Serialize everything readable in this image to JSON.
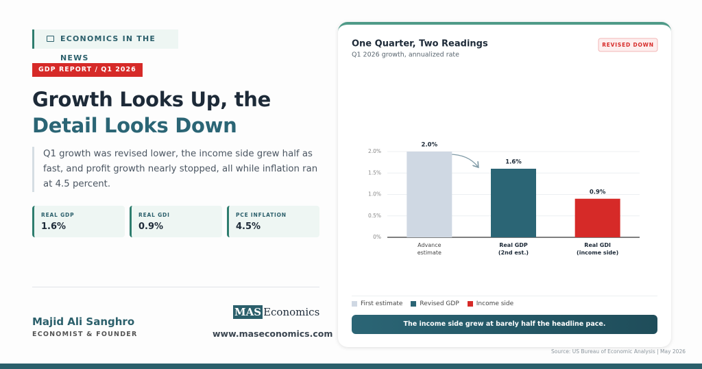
{
  "header": {
    "kicker": "ECONOMICS IN THE NEWS",
    "tag": "GDP REPORT / Q1 2026",
    "title_line1": "Growth Looks Up, the",
    "title_line2": "Detail Looks Down",
    "summary": "Q1 growth was revised lower, the income side grew half as fast, and profit growth nearly stopped, all while inflation ran at 4.5 percent."
  },
  "stats": [
    {
      "label": "REAL GDP",
      "value": "1.6%"
    },
    {
      "label": "REAL GDI",
      "value": "0.9%"
    },
    {
      "label": "PCE INFLATION",
      "value": "4.5%"
    }
  ],
  "author": {
    "name": "Majid Ali Sanghro",
    "role": "ECONOMIST & FOUNDER"
  },
  "brand": {
    "logo_mark": "MAS",
    "logo_text": "Economics",
    "url": "www.maseconomics.com"
  },
  "footer": {
    "source": "Source: US Bureau of Economic Analysis | May 2026"
  },
  "chart_data": {
    "type": "bar",
    "title": "One Quarter, Two Readings",
    "subtitle": "Q1 2026 growth, annualized rate",
    "badge": "REVISED DOWN",
    "categories": [
      "Advance estimate",
      "Real GDP (2nd est.)",
      "Real GDI (income side)"
    ],
    "values": [
      2.0,
      1.6,
      0.9
    ],
    "value_labels": [
      "2.0%",
      "1.6%",
      "0.9%"
    ],
    "colors": [
      "#cfd8e3",
      "#2b6575",
      "#d62a28"
    ],
    "legend": [
      "First estimate",
      "Revised GDP",
      "Income side"
    ],
    "ylim": [
      0,
      2.0
    ],
    "yticks": [
      {
        "value": 0,
        "label": "0%"
      },
      {
        "value": 0.5,
        "label": "0.5%"
      },
      {
        "value": 1.0,
        "label": "1.0%"
      },
      {
        "value": 1.5,
        "label": "1.5%"
      },
      {
        "value": 2.0,
        "label": "2.0%"
      }
    ],
    "grid": true,
    "annotation": "The income side grew at barely half the headline pace."
  }
}
